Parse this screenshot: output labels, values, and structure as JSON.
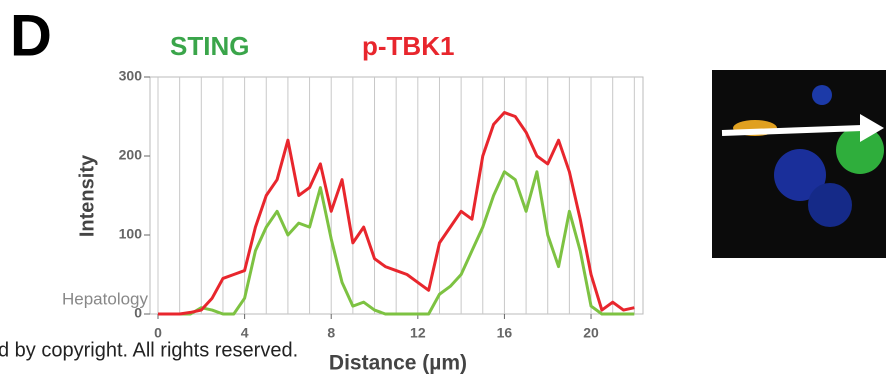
{
  "chart_data": {
    "type": "line",
    "panel_label": "D",
    "y_label": "Intensity",
    "x_label": "Distance (µm)",
    "annotations": [
      "Hepatology",
      "d by copyright. All rights reserved."
    ],
    "x": [
      0,
      0.5,
      1,
      1.5,
      2,
      2.5,
      3,
      3.5,
      4,
      4.5,
      5,
      5.5,
      6,
      6.5,
      7,
      7.5,
      8,
      8.5,
      9,
      9.5,
      10,
      10.5,
      11,
      11.5,
      12,
      12.5,
      13,
      13.5,
      14,
      14.5,
      15,
      15.5,
      16,
      16.5,
      17,
      17.5,
      18,
      18.5,
      19,
      19.5,
      20,
      20.5,
      21,
      21.5,
      22
    ],
    "series": [
      {
        "name": "STING",
        "color": "#7dc242",
        "values": [
          0,
          0,
          0,
          0,
          8,
          5,
          0,
          0,
          20,
          80,
          110,
          130,
          100,
          115,
          110,
          160,
          95,
          40,
          10,
          15,
          5,
          0,
          0,
          0,
          0,
          0,
          25,
          35,
          50,
          80,
          110,
          150,
          180,
          170,
          130,
          180,
          100,
          60,
          130,
          80,
          10,
          0,
          0,
          0,
          0
        ]
      },
      {
        "name": "p-TBK1",
        "color": "#e8262d",
        "values": [
          0,
          0,
          0,
          2,
          5,
          20,
          45,
          50,
          55,
          110,
          150,
          170,
          220,
          150,
          160,
          190,
          130,
          170,
          90,
          110,
          70,
          60,
          55,
          50,
          40,
          30,
          90,
          110,
          130,
          120,
          200,
          240,
          255,
          250,
          230,
          200,
          190,
          220,
          180,
          120,
          50,
          5,
          15,
          5,
          8
        ]
      }
    ],
    "legend_colors": [
      "#3aa54a",
      "#e8262d"
    ],
    "xlim": [
      0,
      22.4
    ],
    "ylim": [
      0,
      300
    ],
    "xticks": [
      0,
      4,
      8,
      12,
      16,
      20
    ],
    "x_minor_ticks": [
      0,
      1,
      2,
      3,
      4,
      5,
      6,
      7,
      8,
      9,
      10,
      11,
      12,
      13,
      14,
      15,
      16,
      17,
      18,
      19,
      20,
      21,
      22
    ],
    "yticks": [
      0,
      100,
      200,
      300
    ],
    "grid": true
  }
}
